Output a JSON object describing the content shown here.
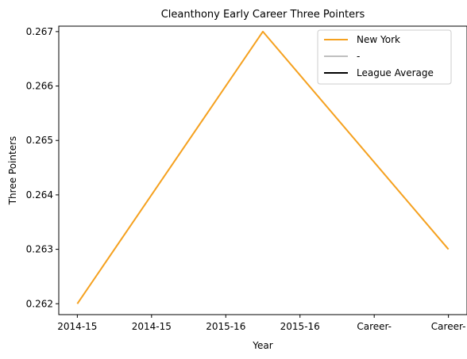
{
  "chart_data": {
    "type": "line",
    "title": "Cleanthony Early Career Three Pointers",
    "xlabel": "Year",
    "ylabel": "Three Pointers",
    "x_tick_labels": [
      "2014-15",
      "2014-15",
      "2015-16",
      "2015-16",
      "Career-",
      "Career-"
    ],
    "x": [
      0,
      2.5,
      5
    ],
    "xlim": [
      -0.25,
      5.25
    ],
    "ylim": [
      0.2618,
      0.2671
    ],
    "y_ticks": [
      "0.262",
      "0.263",
      "0.264",
      "0.265",
      "0.266",
      "0.267"
    ],
    "y_tick_values": [
      0.262,
      0.263,
      0.264,
      0.265,
      0.266,
      0.267
    ],
    "grid": false,
    "legend_position": "top-right",
    "series": [
      {
        "name": "New York",
        "color": "#f5a11f",
        "values": [
          0.262,
          0.267,
          0.263
        ]
      }
    ],
    "legend": [
      {
        "name": "New York",
        "color": "#f5a11f"
      },
      {
        "name": "-",
        "color": "#bfbfbf"
      },
      {
        "name": "League Average",
        "color": "#000000"
      }
    ]
  }
}
